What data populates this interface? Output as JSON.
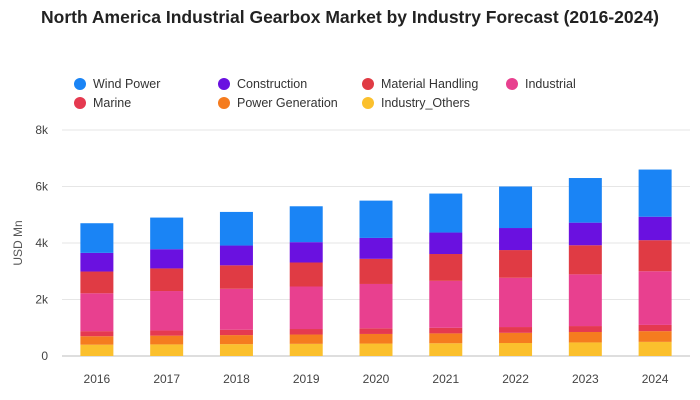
{
  "chart_data": {
    "type": "bar",
    "stacked": true,
    "title": "North America Industrial Gearbox Market by Industry Forecast (2016-2024)",
    "ylabel": "USD Mn",
    "xlabel": "",
    "ylim": [
      0,
      8000
    ],
    "yticks": [
      {
        "value": 0,
        "label": "0"
      },
      {
        "value": 2000,
        "label": "2k"
      },
      {
        "value": 4000,
        "label": "4k"
      },
      {
        "value": 6000,
        "label": "6k"
      },
      {
        "value": 8000,
        "label": "8k"
      }
    ],
    "grid": true,
    "legend_position": "top",
    "categories": [
      "2016",
      "2017",
      "2018",
      "2019",
      "2020",
      "2021",
      "2022",
      "2023",
      "2024"
    ],
    "series": [
      {
        "name": "Industry_Others",
        "color": "#fbc02d",
        "values": [
          400,
          410,
          420,
          430,
          440,
          450,
          460,
          480,
          500
        ]
      },
      {
        "name": "Power Generation",
        "color": "#f57c1f",
        "values": [
          300,
          310,
          320,
          330,
          340,
          350,
          360,
          370,
          380
        ]
      },
      {
        "name": "Marine",
        "color": "#e53950",
        "values": [
          180,
          185,
          190,
          195,
          200,
          200,
          205,
          210,
          220
        ]
      },
      {
        "name": "Industrial",
        "color": "#e8408f",
        "values": [
          1340,
          1395,
          1450,
          1505,
          1570,
          1660,
          1745,
          1830,
          1900
        ]
      },
      {
        "name": "Material Handling",
        "color": "#e03b44",
        "values": [
          770,
          800,
          830,
          850,
          890,
          950,
          980,
          1030,
          1100
        ]
      },
      {
        "name": "Construction",
        "color": "#6a11e0",
        "values": [
          660,
          680,
          700,
          720,
          740,
          760,
          780,
          800,
          830
        ]
      },
      {
        "name": "Wind Power",
        "color": "#1a84f5",
        "values": [
          1050,
          1120,
          1190,
          1270,
          1320,
          1380,
          1470,
          1580,
          1670
        ]
      }
    ],
    "legend_order": [
      "Wind Power",
      "Construction",
      "Material Handling",
      "Industrial",
      "Marine",
      "Power Generation",
      "Industry_Others"
    ]
  }
}
